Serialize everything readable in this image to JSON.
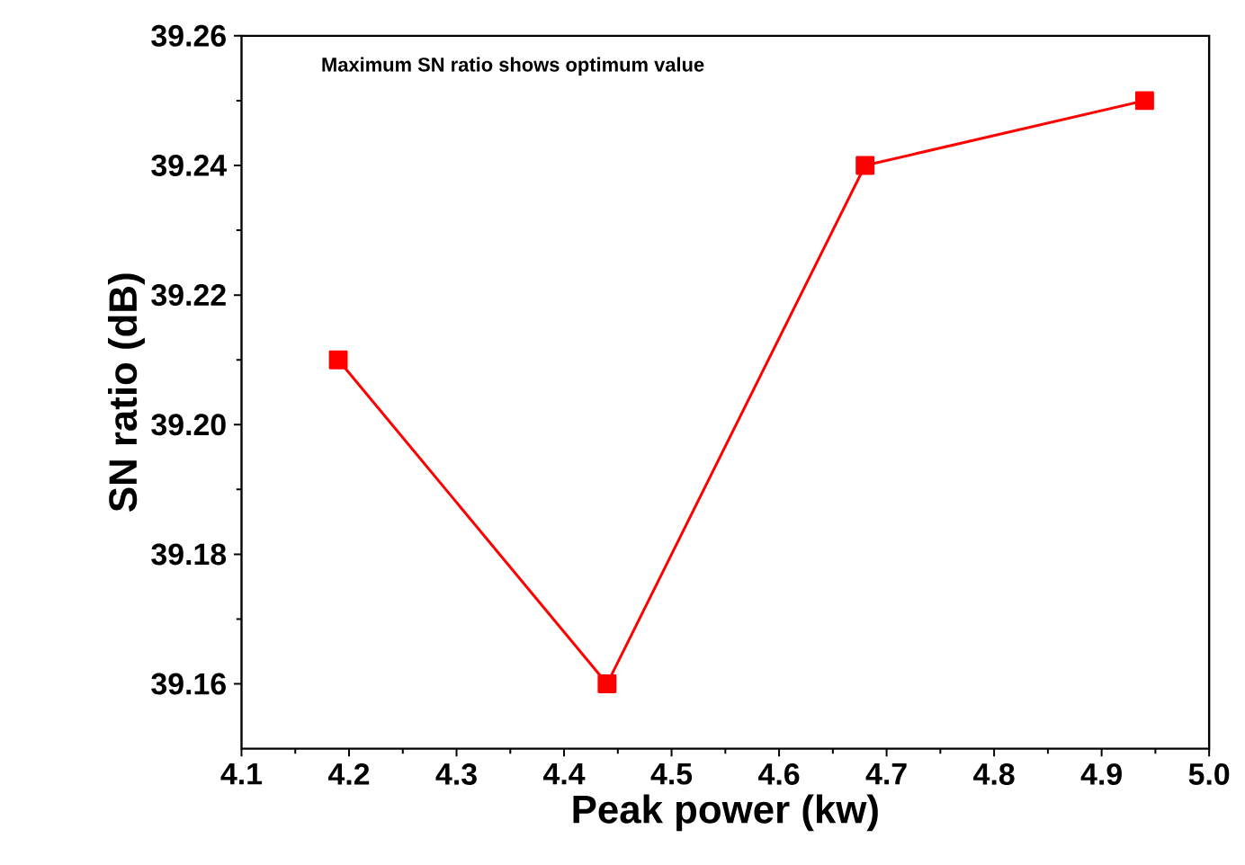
{
  "chart_data": {
    "type": "line",
    "xlabel": "Peak power (kw)",
    "ylabel": "SN ratio (dB)",
    "annotations": [
      "Maximum SN ratio shows optimum value"
    ],
    "x": [
      4.19,
      4.44,
      4.68,
      4.94
    ],
    "series": [
      {
        "color": "#ff0000",
        "values": [
          39.21,
          39.16,
          39.24,
          39.25
        ]
      }
    ],
    "xlim": [
      4.1,
      5.0
    ],
    "xticks": [
      4.1,
      4.2,
      4.3,
      4.4,
      4.5,
      4.6,
      4.7,
      4.8,
      4.9,
      {
        "value": 5.0,
        "label": "5.0"
      }
    ],
    "ylim": [
      39.15,
      39.26
    ],
    "yticks": [
      {
        "value": 39.16,
        "label": "39.16"
      },
      {
        "value": 39.18,
        "label": "39.18"
      },
      {
        "value": 39.2,
        "label": "39.20"
      },
      {
        "value": 39.22,
        "label": "39.22"
      },
      {
        "value": 39.24,
        "label": "39.24"
      },
      {
        "value": 39.26,
        "label": "39.26"
      }
    ],
    "marker": "square",
    "line_style": "solid"
  }
}
